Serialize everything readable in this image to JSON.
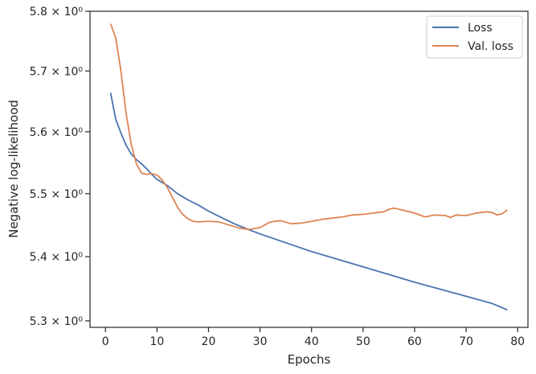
{
  "chart_data": {
    "type": "line",
    "title": "",
    "xlabel": "Epochs",
    "ylabel": "Negative log-likelihood",
    "xlim": [
      -3,
      82
    ],
    "ylim": [
      5.29,
      5.8
    ],
    "yscale": "log",
    "x_ticks": [
      0,
      10,
      20,
      30,
      40,
      50,
      60,
      70,
      80
    ],
    "x_tick_labels": [
      "0",
      "10",
      "20",
      "30",
      "40",
      "50",
      "60",
      "70",
      "80"
    ],
    "y_ticks": [
      5.3,
      5.4,
      5.5,
      5.6,
      5.7,
      5.8
    ],
    "y_tick_labels": [
      "5.3 × 10⁰",
      "5.4 × 10⁰",
      "5.5 × 10⁰",
      "5.6 × 10⁰",
      "5.7 × 10⁰",
      "5.8 × 10⁰"
    ],
    "grid": false,
    "legend_position": "top-right",
    "series": [
      {
        "name": "Loss",
        "color": "#4c72b0",
        "points": [
          [
            1,
            5.664
          ],
          [
            2,
            5.62
          ],
          [
            3,
            5.598
          ],
          [
            4,
            5.578
          ],
          [
            5,
            5.564
          ],
          [
            6,
            5.555
          ],
          [
            7,
            5.548
          ],
          [
            8,
            5.54
          ],
          [
            9,
            5.531
          ],
          [
            10,
            5.523
          ],
          [
            12,
            5.513
          ],
          [
            14,
            5.5
          ],
          [
            16,
            5.49
          ],
          [
            18,
            5.482
          ],
          [
            20,
            5.472
          ],
          [
            22,
            5.464
          ],
          [
            25,
            5.452
          ],
          [
            28,
            5.442
          ],
          [
            30,
            5.436
          ],
          [
            35,
            5.422
          ],
          [
            40,
            5.408
          ],
          [
            45,
            5.396
          ],
          [
            50,
            5.384
          ],
          [
            55,
            5.372
          ],
          [
            60,
            5.36
          ],
          [
            65,
            5.349
          ],
          [
            70,
            5.338
          ],
          [
            75,
            5.327
          ],
          [
            78,
            5.317
          ]
        ]
      },
      {
        "name": "Val. loss",
        "color": "#dd8452",
        "points": [
          [
            1,
            5.779
          ],
          [
            2,
            5.755
          ],
          [
            3,
            5.7
          ],
          [
            4,
            5.63
          ],
          [
            5,
            5.58
          ],
          [
            6,
            5.548
          ],
          [
            7,
            5.533
          ],
          [
            8,
            5.531
          ],
          [
            9,
            5.532
          ],
          [
            10,
            5.53
          ],
          [
            11,
            5.522
          ],
          [
            12,
            5.51
          ],
          [
            13,
            5.494
          ],
          [
            14,
            5.478
          ],
          [
            15,
            5.467
          ],
          [
            16,
            5.46
          ],
          [
            17,
            5.456
          ],
          [
            18,
            5.455
          ],
          [
            20,
            5.456
          ],
          [
            22,
            5.455
          ],
          [
            24,
            5.45
          ],
          [
            26,
            5.445
          ],
          [
            28,
            5.443
          ],
          [
            30,
            5.446
          ],
          [
            32,
            5.455
          ],
          [
            34,
            5.457
          ],
          [
            36,
            5.452
          ],
          [
            38,
            5.453
          ],
          [
            40,
            5.456
          ],
          [
            42,
            5.459
          ],
          [
            44,
            5.461
          ],
          [
            46,
            5.463
          ],
          [
            48,
            5.466
          ],
          [
            50,
            5.467
          ],
          [
            52,
            5.469
          ],
          [
            54,
            5.471
          ],
          [
            55,
            5.475
          ],
          [
            56,
            5.477
          ],
          [
            58,
            5.473
          ],
          [
            60,
            5.469
          ],
          [
            62,
            5.463
          ],
          [
            64,
            5.466
          ],
          [
            66,
            5.465
          ],
          [
            67,
            5.462
          ],
          [
            68,
            5.466
          ],
          [
            70,
            5.465
          ],
          [
            72,
            5.469
          ],
          [
            74,
            5.471
          ],
          [
            75,
            5.47
          ],
          [
            76,
            5.466
          ],
          [
            77,
            5.468
          ],
          [
            78,
            5.474
          ]
        ]
      }
    ]
  }
}
